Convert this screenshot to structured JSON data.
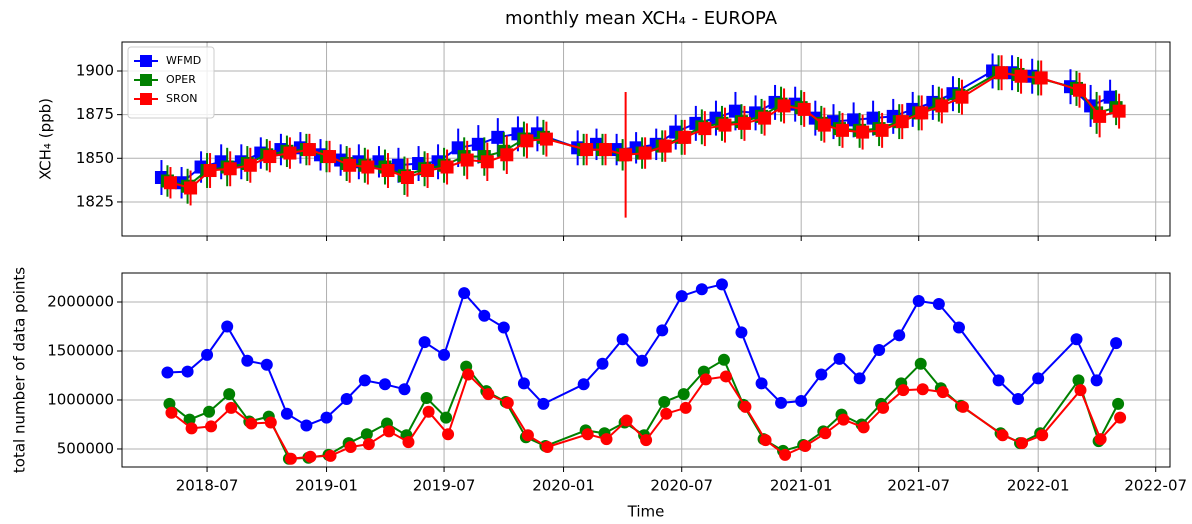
{
  "chart_data": [
    {
      "type": "line",
      "title": "monthly mean XCH₄ - EUROPA",
      "y_label": "XCH₄ (ppb)",
      "legend": "upper left",
      "grid": true,
      "marker": "square",
      "x": [
        "2018-05",
        "2018-06",
        "2018-07",
        "2018-08",
        "2018-09",
        "2018-10",
        "2018-11",
        "2018-12",
        "2019-01",
        "2019-02",
        "2019-03",
        "2019-04",
        "2019-05",
        "2019-06",
        "2019-07",
        "2019-08",
        "2019-09",
        "2019-10",
        "2019-11",
        "2019-12",
        "2020-02",
        "2020-03",
        "2020-04",
        "2020-05",
        "2020-06",
        "2020-07",
        "2020-08",
        "2020-09",
        "2020-10",
        "2020-11",
        "2020-12",
        "2021-01",
        "2021-02",
        "2021-03",
        "2021-04",
        "2021-05",
        "2021-06",
        "2021-07",
        "2021-08",
        "2021-09",
        "2021-11",
        "2021-12",
        "2022-01",
        "2022-03",
        "2022-04",
        "2022-05"
      ],
      "xlim": [
        "2018-02-20",
        "2022-07-23"
      ],
      "ylim": [
        1805.5,
        1916.6
      ],
      "yticks": [
        1825,
        1850,
        1875,
        1900
      ],
      "series": [
        {
          "name": "WFMD",
          "color": "#0000ff",
          "values": [
            1839,
            1836,
            1845,
            1848,
            1848,
            1853,
            1855,
            1856,
            1852,
            1849,
            1848,
            1848,
            1846,
            1847,
            1848,
            1856,
            1858,
            1862,
            1864,
            1864,
            1856,
            1858,
            1855,
            1856,
            1858,
            1865,
            1870,
            1873,
            1877,
            1876,
            1882,
            1881,
            1873,
            1871,
            1872,
            1873,
            1874,
            1878,
            1882,
            1887,
            1900,
            1899,
            1897,
            1891,
            1880,
            1885
          ],
          "errors": [
            10,
            9,
            9,
            10,
            10,
            9,
            9,
            9,
            9,
            9,
            10,
            9,
            10,
            10,
            10,
            11,
            11,
            11,
            10,
            10,
            10,
            9,
            9,
            9,
            9,
            10,
            10,
            10,
            11,
            10,
            10,
            10,
            10,
            10,
            10,
            10,
            10,
            10,
            10,
            10,
            10,
            10,
            10,
            10,
            12,
            10
          ]
        },
        {
          "name": "OPER",
          "color": "#008000",
          "values": [
            1837,
            1834,
            1843,
            1845,
            1847,
            1852,
            1854,
            1855,
            1851,
            1847,
            1846,
            1845,
            1840,
            1844,
            1846,
            1851,
            1851,
            1854,
            1861,
            1862,
            1855,
            1855,
            1852,
            1853,
            1857,
            1862,
            1868,
            1870,
            1871,
            1874,
            1881,
            1879,
            1870,
            1867,
            1866,
            1867,
            1871,
            1876,
            1881,
            1886,
            1899,
            1898,
            1896,
            1890,
            1876,
            1879
          ],
          "errors": [
            9,
            10,
            10,
            11,
            10,
            9,
            9,
            9,
            9,
            10,
            10,
            10,
            11,
            10,
            10,
            11,
            11,
            11,
            10,
            10,
            9,
            9,
            9,
            9,
            9,
            10,
            10,
            10,
            10,
            10,
            10,
            10,
            10,
            10,
            10,
            10,
            10,
            10,
            10,
            10,
            10,
            10,
            10,
            10,
            12,
            10
          ]
        },
        {
          "name": "SRON",
          "color": "#ff0000",
          "values": [
            1836,
            1833,
            1843,
            1844,
            1846,
            1851,
            1853,
            1855,
            1851,
            1846,
            1845,
            1843,
            1839,
            1843,
            1845,
            1849,
            1848,
            1852,
            1860,
            1861,
            1855,
            1855,
            1852,
            1853,
            1857,
            1862,
            1867,
            1869,
            1870,
            1873,
            1880,
            1878,
            1869,
            1866,
            1865,
            1866,
            1871,
            1876,
            1880,
            1885,
            1899,
            1897,
            1896,
            1889,
            1874,
            1877
          ],
          "errors": [
            9,
            10,
            10,
            10,
            10,
            9,
            9,
            9,
            9,
            10,
            10,
            10,
            11,
            10,
            10,
            11,
            11,
            11,
            10,
            10,
            9,
            9,
            36,
            9,
            9,
            10,
            10,
            10,
            10,
            10,
            10,
            10,
            10,
            10,
            10,
            10,
            10,
            10,
            10,
            10,
            10,
            10,
            10,
            10,
            12,
            10
          ]
        }
      ]
    },
    {
      "type": "line",
      "x_label": "Time",
      "y_label": "total number of data points",
      "grid": true,
      "marker": "circle",
      "x": [
        "2018-05",
        "2018-06",
        "2018-07",
        "2018-08",
        "2018-09",
        "2018-10",
        "2018-11",
        "2018-12",
        "2019-01",
        "2019-02",
        "2019-03",
        "2019-04",
        "2019-05",
        "2019-06",
        "2019-07",
        "2019-08",
        "2019-09",
        "2019-10",
        "2019-11",
        "2019-12",
        "2020-02",
        "2020-03",
        "2020-04",
        "2020-05",
        "2020-06",
        "2020-07",
        "2020-08",
        "2020-09",
        "2020-10",
        "2020-11",
        "2020-12",
        "2021-01",
        "2021-02",
        "2021-03",
        "2021-04",
        "2021-05",
        "2021-06",
        "2021-07",
        "2021-08",
        "2021-09",
        "2021-11",
        "2021-12",
        "2022-01",
        "2022-03",
        "2022-04",
        "2022-05"
      ],
      "xlim": [
        "2018-02-20",
        "2022-07-23"
      ],
      "xticks": [
        "2018-07",
        "2019-01",
        "2019-07",
        "2020-01",
        "2020-07",
        "2021-01",
        "2021-07",
        "2022-01",
        "2022-07"
      ],
      "ylim": [
        316000,
        2296000
      ],
      "yticks": [
        500000,
        1000000,
        1500000,
        2000000
      ],
      "series": [
        {
          "name": "WFMD",
          "color": "#0000ff",
          "values": [
            1280000,
            1290000,
            1460000,
            1750000,
            1400000,
            1360000,
            860000,
            740000,
            820000,
            1010000,
            1200000,
            1160000,
            1110000,
            1590000,
            1460000,
            2090000,
            1860000,
            1740000,
            1170000,
            960000,
            1160000,
            1370000,
            1620000,
            1400000,
            1710000,
            2060000,
            2130000,
            2180000,
            1690000,
            1170000,
            970000,
            990000,
            1260000,
            1420000,
            1220000,
            1510000,
            1660000,
            2010000,
            1980000,
            1740000,
            1200000,
            1010000,
            1220000,
            1620000,
            1200000,
            1580000
          ]
        },
        {
          "name": "OPER",
          "color": "#008000",
          "values": [
            960000,
            800000,
            880000,
            1060000,
            780000,
            830000,
            400000,
            410000,
            440000,
            560000,
            650000,
            760000,
            640000,
            1020000,
            820000,
            1340000,
            1090000,
            980000,
            620000,
            530000,
            690000,
            660000,
            770000,
            640000,
            980000,
            1060000,
            1290000,
            1410000,
            950000,
            600000,
            480000,
            540000,
            680000,
            850000,
            750000,
            960000,
            1170000,
            1370000,
            1120000,
            940000,
            660000,
            560000,
            660000,
            1200000,
            580000,
            960000
          ]
        },
        {
          "name": "SRON",
          "color": "#ff0000",
          "values": [
            870000,
            710000,
            730000,
            920000,
            760000,
            770000,
            400000,
            420000,
            430000,
            520000,
            550000,
            680000,
            570000,
            880000,
            650000,
            1260000,
            1060000,
            970000,
            640000,
            520000,
            650000,
            600000,
            790000,
            590000,
            860000,
            920000,
            1210000,
            1240000,
            930000,
            590000,
            440000,
            530000,
            660000,
            800000,
            720000,
            920000,
            1100000,
            1110000,
            1080000,
            930000,
            640000,
            560000,
            640000,
            1100000,
            600000,
            820000
          ]
        }
      ]
    }
  ]
}
